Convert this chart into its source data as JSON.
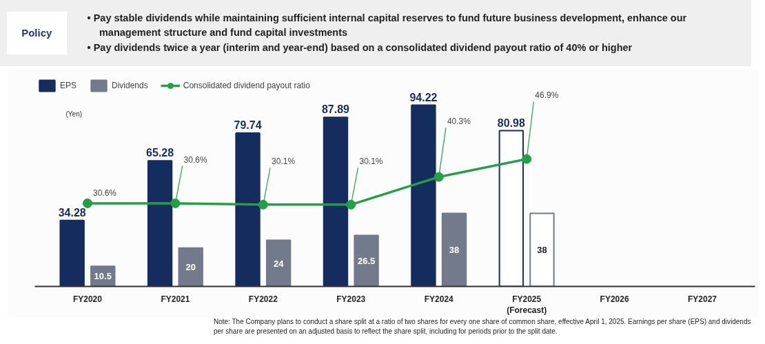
{
  "chart_data": {
    "type": "bar",
    "title": "Policy",
    "annotations": [
      "• Pay stable dividends while maintaining sufficient internal capital reserves to fund future business development, enhance our management structure and fund capital investments",
      "• Pay dividends twice a year (interim and year-end) based on a consolidated dividend payout ratio of 40% or higher",
      "Note: The Company plans to conduct a share split at a ratio of two shares for every one share of common share, effective April 1, 2025. Earnings per share (EPS) and dividends per share are presented on an adjusted basis to reflect the share split, including for periods prior to the split date."
    ],
    "ylabel": "(Yen)",
    "categories": [
      "FY2020",
      "FY2021",
      "FY2022",
      "FY2023",
      "FY2024",
      "FY2025\n(Forecast)",
      "FY2026",
      "FY2027"
    ],
    "series": [
      {
        "name": "EPS",
        "color": "#152c5e",
        "colors": [
          "#152c5e",
          "#152c5e",
          "#152c5e",
          "#152c5e",
          "#152c5e",
          "#ffffff",
          null,
          null
        ],
        "values": [
          34.28,
          65.28,
          79.74,
          87.89,
          94.22,
          80.98,
          null,
          null
        ],
        "value_labels": [
          "34.28",
          "65.28",
          "79.74",
          "87.89",
          "94.22",
          "80.98",
          null,
          null
        ]
      },
      {
        "name": "Dividends",
        "color": "#727a8c",
        "colors": [
          "#727a8c",
          "#727a8c",
          "#727a8c",
          "#727a8c",
          "#727a8c",
          "#ffffff",
          null,
          null
        ],
        "values": [
          10.5,
          20,
          24,
          26.5,
          38,
          38,
          null,
          null
        ],
        "value_labels": [
          "10.5",
          "20",
          "24",
          "26.5",
          "38",
          "38",
          null,
          null
        ]
      },
      {
        "name": "Consolidated dividend payout ratio",
        "type": "line",
        "axis": "y2",
        "color": "#22a045",
        "values": [
          30.6,
          30.6,
          30.1,
          30.1,
          40.3,
          46.9,
          null,
          null
        ],
        "value_labels": [
          "30.6%",
          "30.6%",
          "30.1%",
          "30.1%",
          "40.3%",
          "46.9%",
          null,
          null
        ]
      }
    ],
    "tick_labels": "x",
    "data_labels": true,
    "grid": false,
    "legend": "top left",
    "marker": "circle",
    "line_style": "solid"
  }
}
